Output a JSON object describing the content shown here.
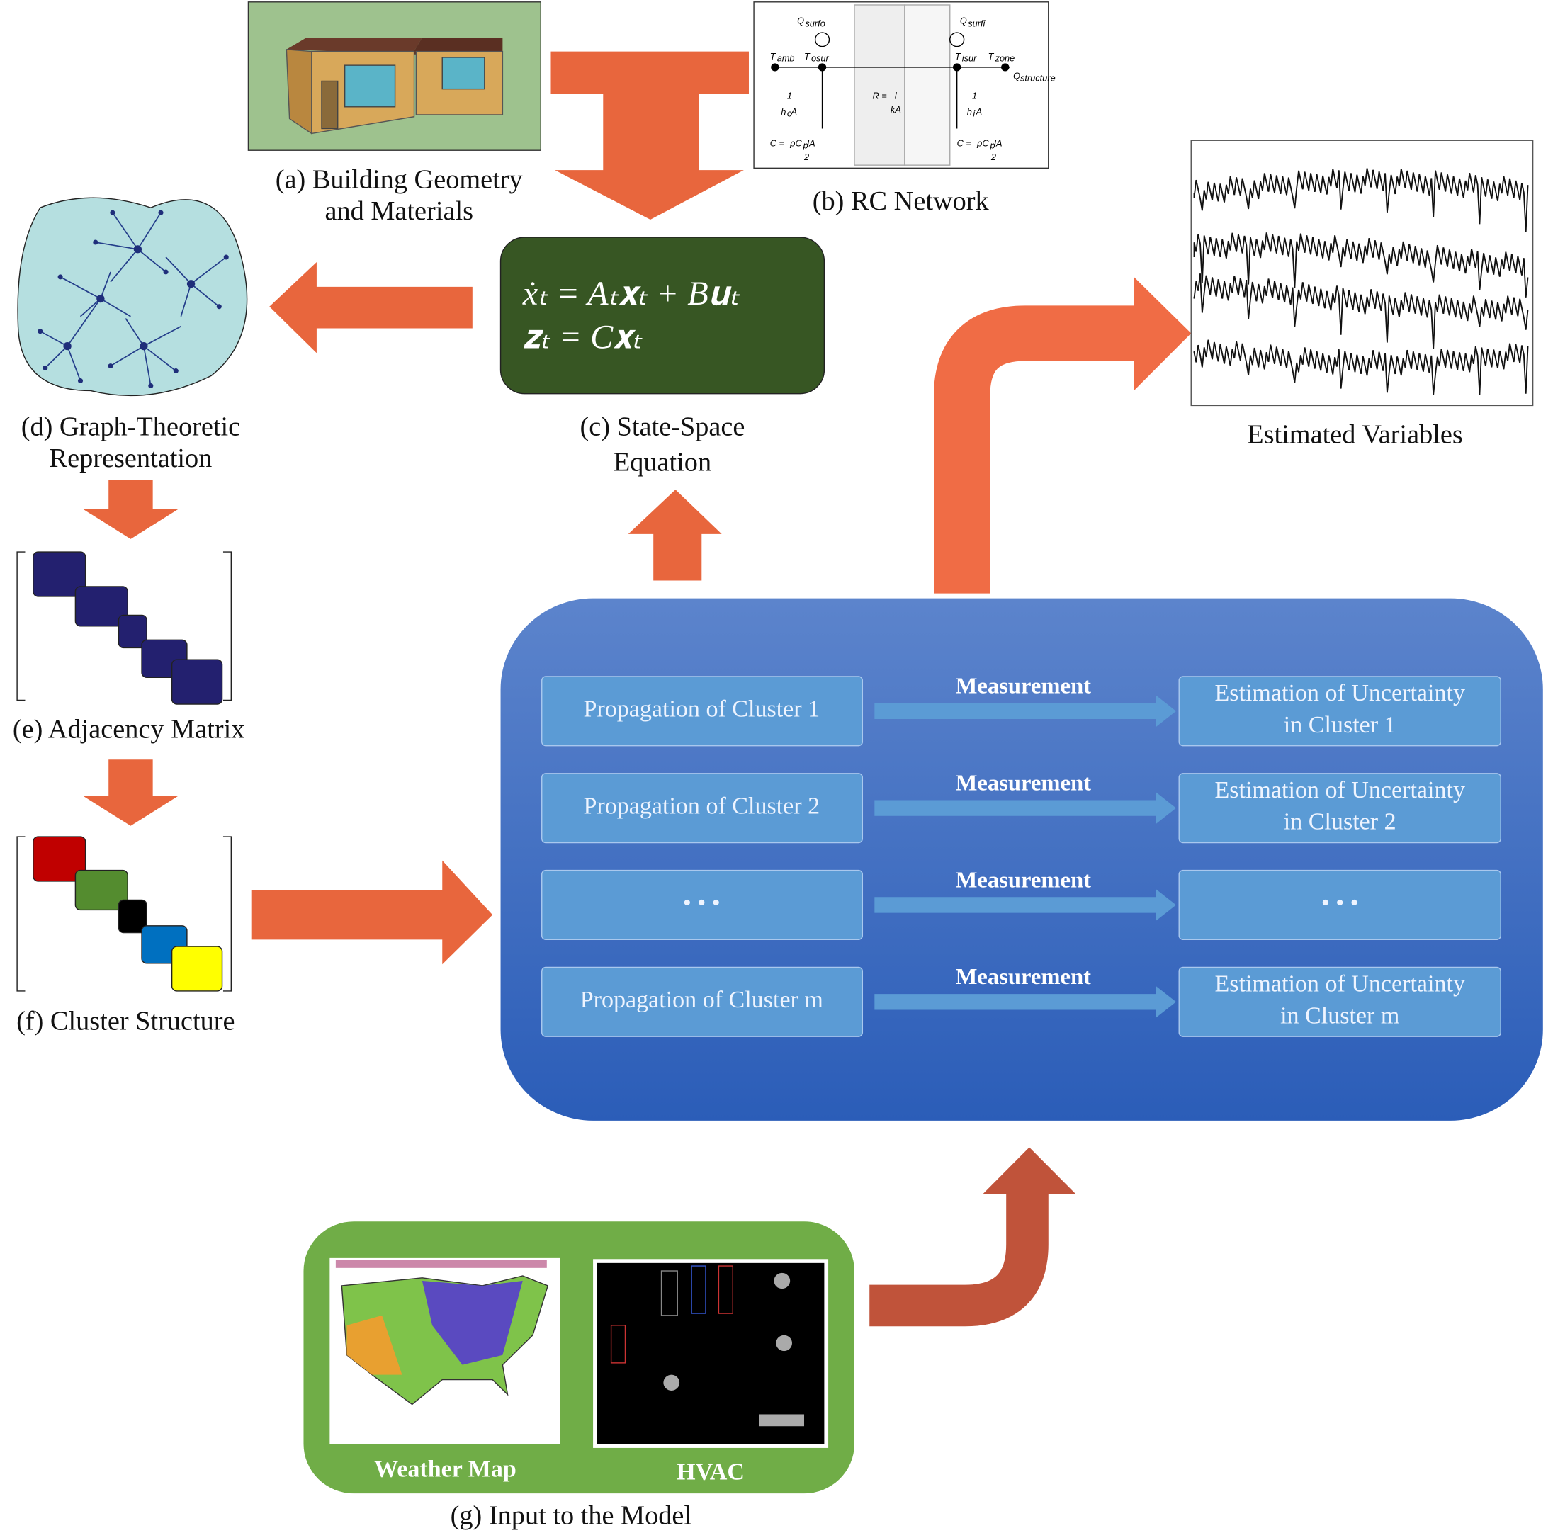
{
  "building": {
    "caption": [
      "(a) Building Geometry",
      "and Materials"
    ]
  },
  "rc_network": {
    "caption": "(b) RC Network",
    "labels": [
      "Q",
      "surfo",
      "Q",
      "surfi",
      "T",
      "amb",
      "T",
      "osur",
      "T",
      "isur",
      "T",
      "zone",
      "Q",
      "structure",
      "R = ",
      "l",
      "kA",
      "1",
      "h",
      "o",
      "A",
      "1",
      "h",
      "i",
      "A",
      "C = ",
      "ρC",
      "p",
      "lA",
      "2",
      "C = ",
      "ρC",
      "p",
      "lA",
      "2"
    ]
  },
  "state_space": {
    "equations": [
      "ẋₜ = Aₜ𝐱ₜ + B𝐮ₜ",
      "𝐳ₜ = C𝐱ₜ"
    ],
    "caption": [
      "(c) State-Space",
      "Equation"
    ]
  },
  "graph": {
    "caption": [
      "(d) Graph-Theoretic",
      "Representation"
    ]
  },
  "adjacency": {
    "caption": "(e) Adjacency Matrix"
  },
  "clusters": {
    "caption": "(f) Cluster Structure"
  },
  "estimated": {
    "caption": "Estimated Variables"
  },
  "estimation_rows": [
    {
      "propagation": "Propagation of Cluster 1",
      "measurement": "Measurement",
      "estimation": [
        "Estimation of Uncertainty",
        "in Cluster 1"
      ]
    },
    {
      "propagation": "Propagation of Cluster 2",
      "measurement": "Measurement",
      "estimation": [
        "Estimation of Uncertainty",
        "in Cluster 2"
      ]
    },
    {
      "propagation": "•   •   •",
      "measurement": "Measurement",
      "estimation": [
        "•   •   •"
      ]
    },
    {
      "propagation": "Propagation of Cluster m",
      "measurement": "Measurement",
      "estimation": [
        "Estimation of Uncertainty",
        "in Cluster m"
      ]
    }
  ],
  "input": {
    "weather_label": "Weather Map",
    "hvac_label": "HVAC",
    "caption": "(g) Input to the Model"
  }
}
